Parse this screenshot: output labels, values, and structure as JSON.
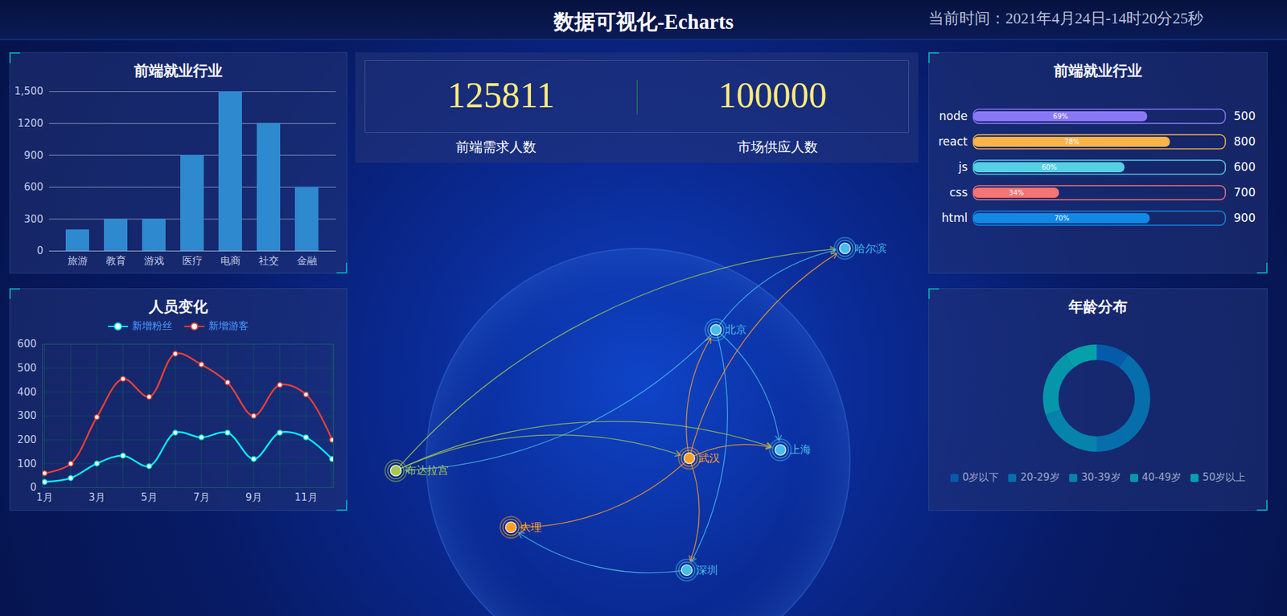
{
  "header": {
    "title": "数据可视化-Echarts",
    "time": "当前时间：2021年4月24日-14时20分25秒"
  },
  "kpis": [
    {
      "value": 125811,
      "label": "前端需求人数"
    },
    {
      "value": 100000,
      "label": "市场供应人数"
    }
  ],
  "chart_data": [
    {
      "type": "bar",
      "title": "前端就业行业",
      "categories": [
        "旅游",
        "教育",
        "游戏",
        "医疗",
        "电商",
        "社交",
        "金融"
      ],
      "values": [
        200,
        300,
        300,
        900,
        1500,
        1200,
        600
      ],
      "color": "#2f89cf",
      "ylim": [
        0,
        1500
      ],
      "yticks": [
        0,
        300,
        600,
        900,
        1200,
        {
          "value": 1500,
          "label": "1,500"
        }
      ],
      "grid": true
    },
    {
      "type": "line",
      "title": "人员变化",
      "categories": [
        "1月",
        null,
        "3月",
        null,
        "5月",
        null,
        "7月",
        null,
        "9月",
        null,
        "11月",
        null
      ],
      "series": [
        {
          "name": "新增粉丝",
          "color": "#00f2f1",
          "values": [
            24,
            40,
            101,
            134,
            90,
            230,
            210,
            230,
            120,
            230,
            210,
            120
          ]
        },
        {
          "name": "新增游客",
          "color": "#ed3f35",
          "values": [
            60,
            100,
            295,
            455,
            380,
            560,
            515,
            440,
            300,
            430,
            390,
            200
          ]
        }
      ],
      "ylim": [
        0,
        600
      ],
      "yticks": [
        0,
        100,
        200,
        300,
        400,
        500,
        600
      ],
      "grid": true,
      "legend": "top",
      "marker": "circle"
    },
    {
      "type": "bar",
      "title": "前端就业行业",
      "orientation": "horizontal",
      "categories": [
        "node",
        "react",
        "js",
        "css",
        "html"
      ],
      "values": [
        69,
        78,
        60,
        34,
        70
      ],
      "value_labels": [
        "69%",
        "78%",
        "60%",
        "34%",
        "70%"
      ],
      "totals": [
        500,
        800,
        600,
        700,
        900
      ],
      "colors": [
        "#8b78f6",
        "#f8b448",
        "#56d0e3",
        "#f57474",
        "#1089e7"
      ],
      "xlim": [
        0,
        100
      ],
      "data_labels": true,
      "tick_labels": "y"
    },
    {
      "type": "map",
      "points": [
        {
          "name": "哈尔滨",
          "lon": 126.6,
          "lat": 45.8,
          "color": "#46bee9"
        },
        {
          "name": "北京",
          "lon": 116.4,
          "lat": 39.9,
          "color": "#46bee9"
        },
        {
          "name": "布达拉宫",
          "lon": 91.1,
          "lat": 29.7,
          "color": "#a6c84c"
        },
        {
          "name": "武汉",
          "lon": 114.3,
          "lat": 30.6,
          "color": "#ffa022"
        },
        {
          "name": "上海",
          "lon": 121.5,
          "lat": 31.2,
          "color": "#46bee9"
        },
        {
          "name": "大理",
          "lon": 100.2,
          "lat": 25.6,
          "color": "#ffa022"
        },
        {
          "name": "深圳",
          "lon": 114.1,
          "lat": 22.5,
          "color": "#46bee9"
        }
      ],
      "routes": [
        {
          "from": "北京",
          "to": "哈尔滨",
          "color": "#46bee9"
        },
        {
          "from": "北京",
          "to": "布达拉宫",
          "color": "#46bee9"
        },
        {
          "from": "北京",
          "to": "上海",
          "color": "#46bee9"
        },
        {
          "from": "北京",
          "to": "深圳",
          "color": "#46bee9"
        },
        {
          "from": "武汉",
          "to": "北京",
          "color": "#ffa022"
        },
        {
          "from": "武汉",
          "to": "哈尔滨",
          "color": "#ffa022"
        },
        {
          "from": "武汉",
          "to": "深圳",
          "color": "#ffa022"
        },
        {
          "from": "武汉",
          "to": "上海",
          "color": "#ffa022"
        },
        {
          "from": "武汉",
          "to": "大理",
          "color": "#ffa022"
        },
        {
          "from": "布达拉宫",
          "to": "上海",
          "color": "#a6c84c"
        },
        {
          "from": "布达拉宫",
          "to": "哈尔滨",
          "color": "#a6c84c"
        },
        {
          "from": "布达拉宫",
          "to": "武汉",
          "color": "#a6c84c"
        },
        {
          "from": "深圳",
          "to": "大理",
          "color": "#46bee9"
        }
      ],
      "tick_labels": false
    },
    {
      "type": "pie",
      "title": "年龄分布",
      "categories": [
        "0岁以下",
        "20-29岁",
        "30-39岁",
        "40-49岁",
        "50岁以上"
      ],
      "values": [
        1,
        4,
        2,
        2,
        1
      ],
      "colors": [
        "#065aab",
        "#066eab",
        "#0682ab",
        "#0696ab",
        "#06a0ab"
      ],
      "legend": "bottom"
    }
  ]
}
